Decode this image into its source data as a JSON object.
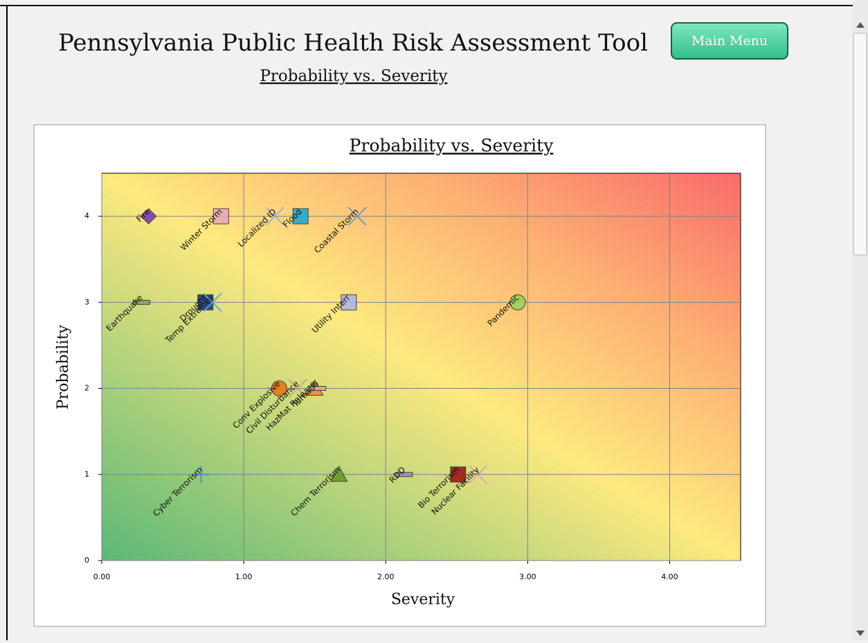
{
  "header": {
    "title": "Pennsylvania Public Health Risk Assessment Tool",
    "subtitle": "Probability vs. Severity",
    "button": "Main Menu"
  },
  "chart_data": {
    "type": "scatter",
    "title": "Probability vs. Severity",
    "x_label": "Severity",
    "y_label": "Probability",
    "xlim": [
      0,
      4.5
    ],
    "ylim": [
      0,
      4.5
    ],
    "xticks": [
      {
        "value": 0,
        "label": "0.00"
      },
      {
        "value": 1,
        "label": "1.00"
      },
      {
        "value": 2,
        "label": "2.00"
      },
      {
        "value": 3,
        "label": "3.00"
      },
      {
        "value": 4,
        "label": "4.00"
      }
    ],
    "yticks": [
      0,
      1,
      2,
      3,
      4
    ],
    "grid": true,
    "points": [
      {
        "label": "Fire",
        "x": 0.33,
        "y": 4,
        "color": "#7a3fb0",
        "marker": "diamond"
      },
      {
        "label": "Winter Storm",
        "x": 0.84,
        "y": 4,
        "color": "#e6a9b8",
        "marker": "square"
      },
      {
        "label": "Localized ID",
        "x": 1.22,
        "y": 4,
        "color": "#8fb4d9",
        "marker": "x"
      },
      {
        "label": "Flood",
        "x": 1.4,
        "y": 4,
        "color": "#1fa9cf",
        "marker": "square"
      },
      {
        "label": "Coastal Storm",
        "x": 1.8,
        "y": 4,
        "color": "#6a95c8",
        "marker": "x"
      },
      {
        "label": "Earthquake",
        "x": 0.28,
        "y": 3,
        "color": "#8aa84a",
        "marker": "dash"
      },
      {
        "label": "Drought",
        "x": 0.73,
        "y": 3,
        "color": "#1e3f8a",
        "marker": "square"
      },
      {
        "label": "Temp Extremes",
        "x": 0.78,
        "y": 3,
        "color": "#5aa0d8",
        "marker": "x"
      },
      {
        "label": "Utility Interr",
        "x": 1.74,
        "y": 3,
        "color": "#aab6e0",
        "marker": "square"
      },
      {
        "label": "Pandemic",
        "x": 2.93,
        "y": 3,
        "color": "#9ad35a",
        "marker": "circle"
      },
      {
        "label": "Conv Explosive",
        "x": 1.25,
        "y": 2,
        "color": "#e8761c",
        "marker": "circle"
      },
      {
        "label": "Civil Disturbance",
        "x": 1.38,
        "y": 2,
        "color": "#c9a27a",
        "marker": "x"
      },
      {
        "label": "HazMat Release",
        "x": 1.5,
        "y": 2,
        "color": "#f08a3a",
        "marker": "triangle"
      },
      {
        "label": "Tornado",
        "x": 1.52,
        "y": 2,
        "color": "#e0b070",
        "marker": "dash"
      },
      {
        "label": "Cyber Terrorism",
        "x": 0.7,
        "y": 1,
        "color": "#4a7fd0",
        "marker": "plus"
      },
      {
        "label": "Chem Terrorism",
        "x": 1.67,
        "y": 1,
        "color": "#6a9a28",
        "marker": "triangle"
      },
      {
        "label": "RDD",
        "x": 2.13,
        "y": 1,
        "color": "#a08ac0",
        "marker": "dash"
      },
      {
        "label": "Bio Terrorism",
        "x": 2.51,
        "y": 1,
        "color": "#a01818",
        "marker": "square"
      },
      {
        "label": "Nuclear Facility",
        "x": 2.65,
        "y": 1,
        "color": "#d8a0b8",
        "marker": "x"
      }
    ]
  }
}
